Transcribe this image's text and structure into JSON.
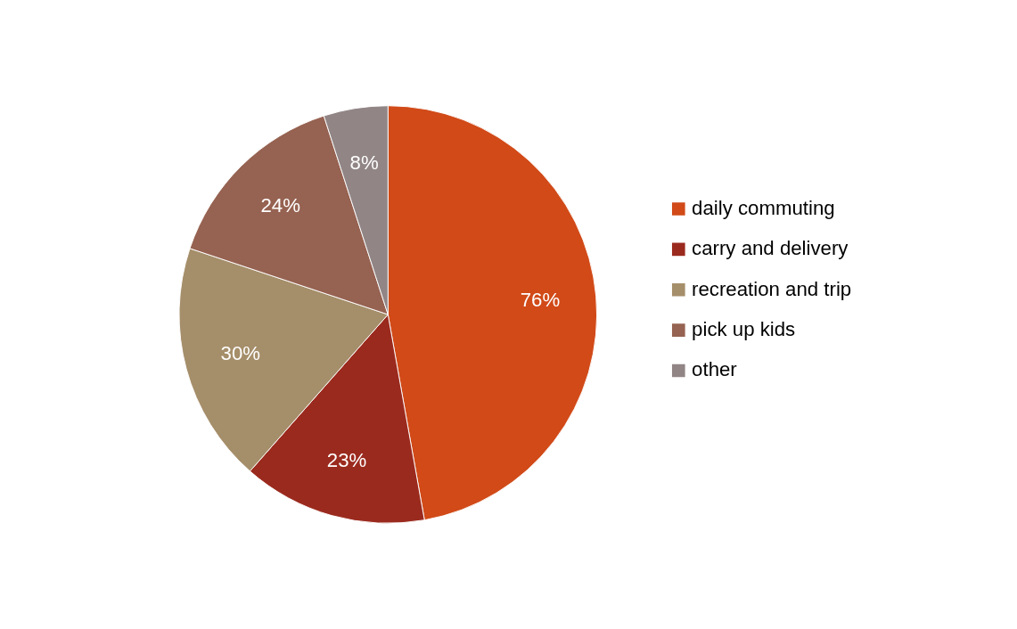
{
  "chart_data": {
    "type": "pie",
    "categories": [
      "daily commuting",
      "carry and delivery",
      "recreation and trip",
      "pick up kids",
      "other"
    ],
    "values": [
      76,
      23,
      30,
      24,
      8
    ],
    "colors": [
      "#d14a18",
      "#9b2a1e",
      "#a58e6a",
      "#966251",
      "#918585"
    ],
    "value_labels": [
      "76%",
      "23%",
      "30%",
      "24%",
      "8%"
    ],
    "legend": "right"
  }
}
